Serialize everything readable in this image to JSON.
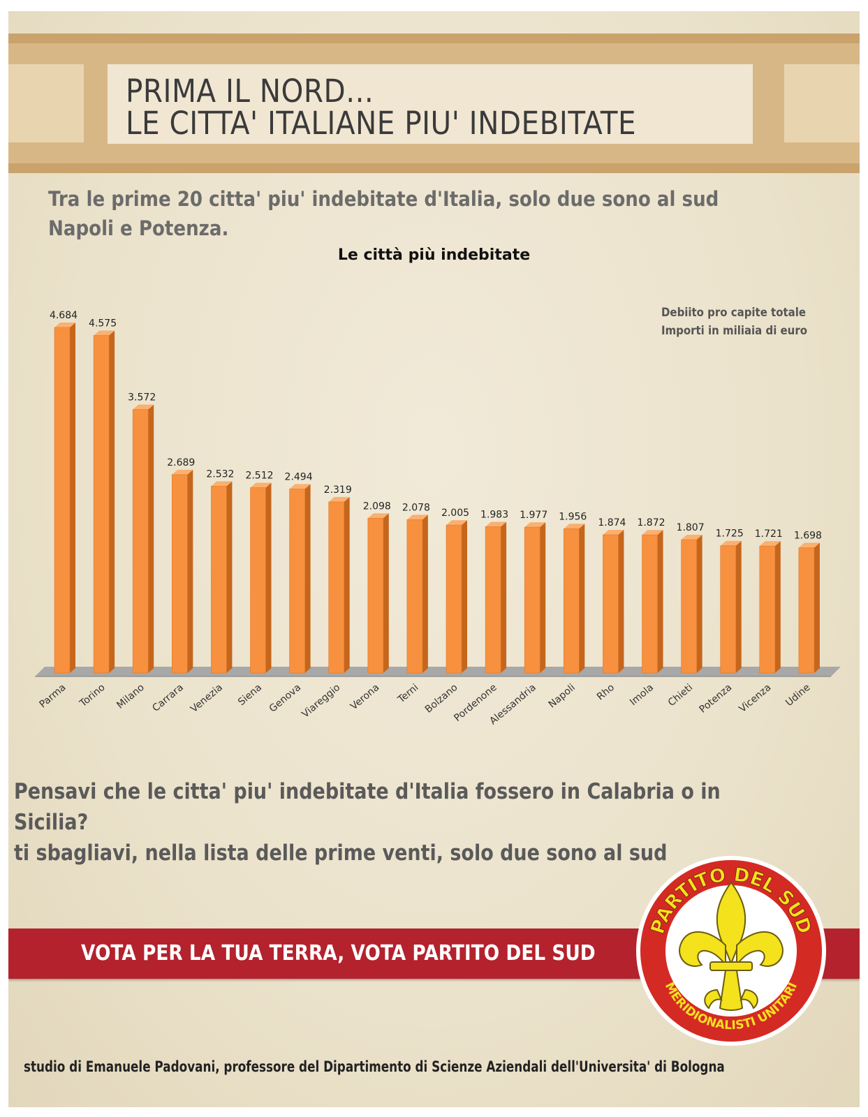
{
  "header": {
    "title_line1": "PRIMA IL NORD...",
    "title_line2": "LE CITTA' ITALIANE PIU' INDEBITATE"
  },
  "intro": {
    "text_line1": "Tra le prime 20 citta' piu' indebitate d'Italia, solo due sono al sud",
    "text_line2": "Napoli e Potenza."
  },
  "chart_data": {
    "type": "bar",
    "title": "Le città più indebitate",
    "annotation_line1": "Debiito pro capite totale",
    "annotation_line2": "Importi in miliaia di euro",
    "categories": [
      "Parma",
      "Torino",
      "Milano",
      "Carrara",
      "Venezia",
      "Siena",
      "Genova",
      "Viareggio",
      "Verona",
      "Terni",
      "Bolzano",
      "Pordenone",
      "Alessandria",
      "Napoli",
      "Rho",
      "Imola",
      "Chieti",
      "Potenza",
      "Vicenza",
      "Udine"
    ],
    "values": [
      4684,
      4575,
      3572,
      2689,
      2532,
      2512,
      2494,
      2319,
      2098,
      2078,
      2005,
      1983,
      1977,
      1956,
      1874,
      1872,
      1807,
      1725,
      1721,
      1698
    ],
    "value_labels": [
      "4.684",
      "4.575",
      "3.572",
      "2.689",
      "2.532",
      "2.512",
      "2.494",
      "2.319",
      "2.098",
      "2.078",
      "2.005",
      "1.983",
      "1.977",
      "1.956",
      "1.874",
      "1.872",
      "1.807",
      "1.725",
      "1.721",
      "1.698"
    ],
    "ylim": [
      0,
      4684
    ],
    "grid": false,
    "bar_color": "#f7913f",
    "bar_side_color": "#c5661c",
    "floor_color": "#a8a8a8"
  },
  "question": {
    "line1": "Pensavi che le citta' piu' indebitate d'Italia fossero in Calabria o in Sicilia?",
    "line2": "ti sbagliavi, nella lista delle prime venti, solo due sono al sud"
  },
  "banner": {
    "text": "VOTA PER LA TUA TERRA, VOTA PARTITO DEL SUD",
    "color": "#b3222d"
  },
  "logo": {
    "top_text": "PARTITO DEL SUD",
    "bottom_text": "MERIDIONALISTI UNITARI",
    "ring_color": "#d42a24",
    "emblem_color": "#f4e21c"
  },
  "footer": {
    "credit": "studio di Emanuele Padovani, professore del Dipartimento di Scienze Aziendali dell'Universita' di Bologna"
  }
}
